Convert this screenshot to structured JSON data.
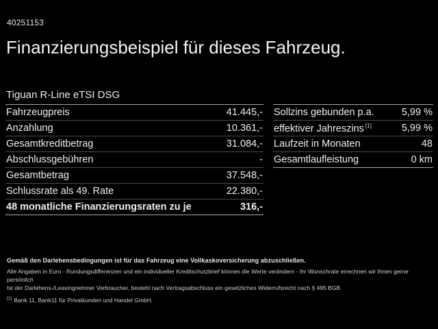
{
  "page": {
    "vehicle_id": "40251153",
    "title": "Finanzierungsbeispiel für dieses Fahrzeug.",
    "subtitle": "Tiguan R-Line eTSI DSG"
  },
  "colors": {
    "background": "#000000",
    "text": "#f0f0f0",
    "divider_outer": "#a8a8a8",
    "divider_inner": "#4d4d4d"
  },
  "tables": {
    "left": {
      "rows": [
        {
          "label": "Fahrzeugpreis",
          "value": "41.445,-"
        },
        {
          "label": "Anzahlung",
          "value": "10.361,-"
        },
        {
          "label": "Gesamtkreditbetrag",
          "value": "31.084,-"
        },
        {
          "label": "Abschlussgebühren",
          "value": "-"
        },
        {
          "label": "Gesamtbetrag",
          "value": "37.548,-"
        },
        {
          "label": "Schlussrate als 49. Rate",
          "value": "22.380,-"
        },
        {
          "label": "48 monatliche Finanzierungsraten zu je",
          "value": "316,-"
        }
      ]
    },
    "right": {
      "rows": [
        {
          "label": "Sollzins gebunden p.a.",
          "value": "5,99 %"
        },
        {
          "label": "effektiver Jahreszins",
          "sup": "[1]",
          "value": "5,99 %"
        },
        {
          "label": "Laufzeit in Monaten",
          "value": "48"
        },
        {
          "label": "Gesamtlaufleistung",
          "value": "0 km"
        }
      ]
    }
  },
  "footer": {
    "bold_line": "Gemäß den Darlehensbedingungen ist für das Fahrzeug eine Vollkaskoversicherung abzuschließen.",
    "lines": [
      "Alle Angaben in Euro - Rundungsdifferenzen und ein individueller Kreditschutzbrief können die Werte verändern - Ihr Wunschrate errechnen wir Ihnen gerne persönlich",
      "Ist der Darlehens-/Leasingnehmer Verbraucher, besteht nach Vertragsabschluss ein gesetzliches Widerrufsrecht nach § 495 BGB"
    ],
    "footnote_marker": "[1]",
    "footnote_text": "Bank 11, Bank11 für Privatkunden und Handel GmbH."
  }
}
